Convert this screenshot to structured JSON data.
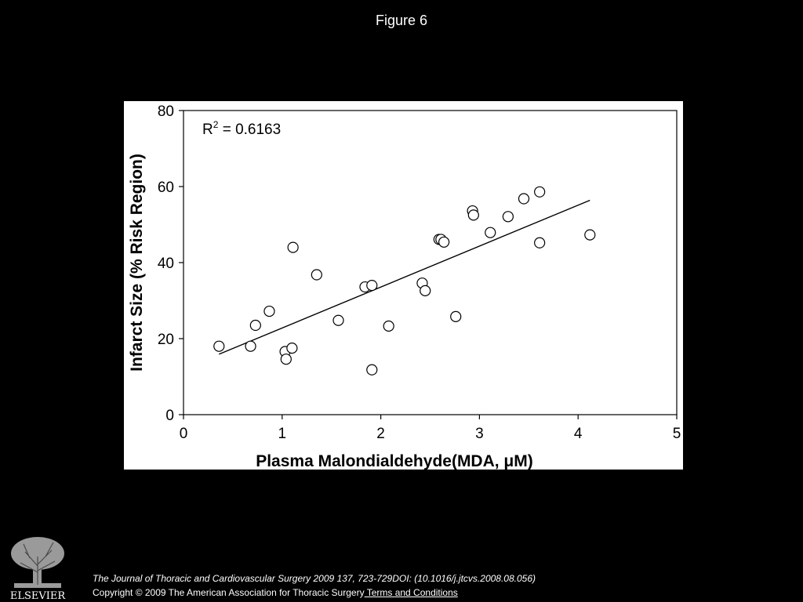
{
  "slide": {
    "title": "Figure 6"
  },
  "chart_data": {
    "type": "scatter",
    "title": "",
    "xlabel": "Plasma Malondialdehyde(MDA, μM)",
    "ylabel": "Infarct Size (% Risk Region)",
    "xlim": [
      0,
      5
    ],
    "ylim": [
      0,
      80
    ],
    "xticks": [
      "0",
      "1",
      "2",
      "3",
      "4",
      "5"
    ],
    "yticks": [
      "0",
      "20",
      "40",
      "60",
      "80"
    ],
    "annotation": {
      "base": "R",
      "sup": "2",
      "rest": " = 0.6163"
    },
    "points": [
      {
        "x": 0.36,
        "y": 18.0
      },
      {
        "x": 0.68,
        "y": 18.0
      },
      {
        "x": 0.73,
        "y": 23.5
      },
      {
        "x": 0.87,
        "y": 27.2
      },
      {
        "x": 1.03,
        "y": 16.6
      },
      {
        "x": 1.04,
        "y": 14.6
      },
      {
        "x": 1.1,
        "y": 17.5
      },
      {
        "x": 1.11,
        "y": 44.0
      },
      {
        "x": 1.35,
        "y": 36.8
      },
      {
        "x": 1.57,
        "y": 24.8
      },
      {
        "x": 1.84,
        "y": 33.6
      },
      {
        "x": 1.91,
        "y": 34.0
      },
      {
        "x": 1.91,
        "y": 11.8
      },
      {
        "x": 2.08,
        "y": 23.3
      },
      {
        "x": 2.42,
        "y": 34.6
      },
      {
        "x": 2.45,
        "y": 32.6
      },
      {
        "x": 2.59,
        "y": 46.1
      },
      {
        "x": 2.61,
        "y": 46.1
      },
      {
        "x": 2.64,
        "y": 45.4
      },
      {
        "x": 2.76,
        "y": 25.8
      },
      {
        "x": 2.93,
        "y": 53.6
      },
      {
        "x": 2.94,
        "y": 52.5
      },
      {
        "x": 3.11,
        "y": 47.9
      },
      {
        "x": 3.29,
        "y": 52.1
      },
      {
        "x": 3.45,
        "y": 56.8
      },
      {
        "x": 3.61,
        "y": 58.6
      },
      {
        "x": 3.61,
        "y": 45.2
      },
      {
        "x": 4.12,
        "y": 47.3
      }
    ],
    "trendline": {
      "x": [
        0.36,
        4.12
      ],
      "y": [
        15.9,
        56.4
      ]
    }
  },
  "footer": {
    "citation": "The Journal of Thoracic and Cardiovascular Surgery 2009 137, 723-729DOI: (10.1016/j.jtcvs.2008.08.056)",
    "copyright": "Copyright © 2009 The American Association for Thoracic Surgery",
    "terms_link": " Terms and Conditions",
    "logo_text": "ELSEVIER"
  }
}
